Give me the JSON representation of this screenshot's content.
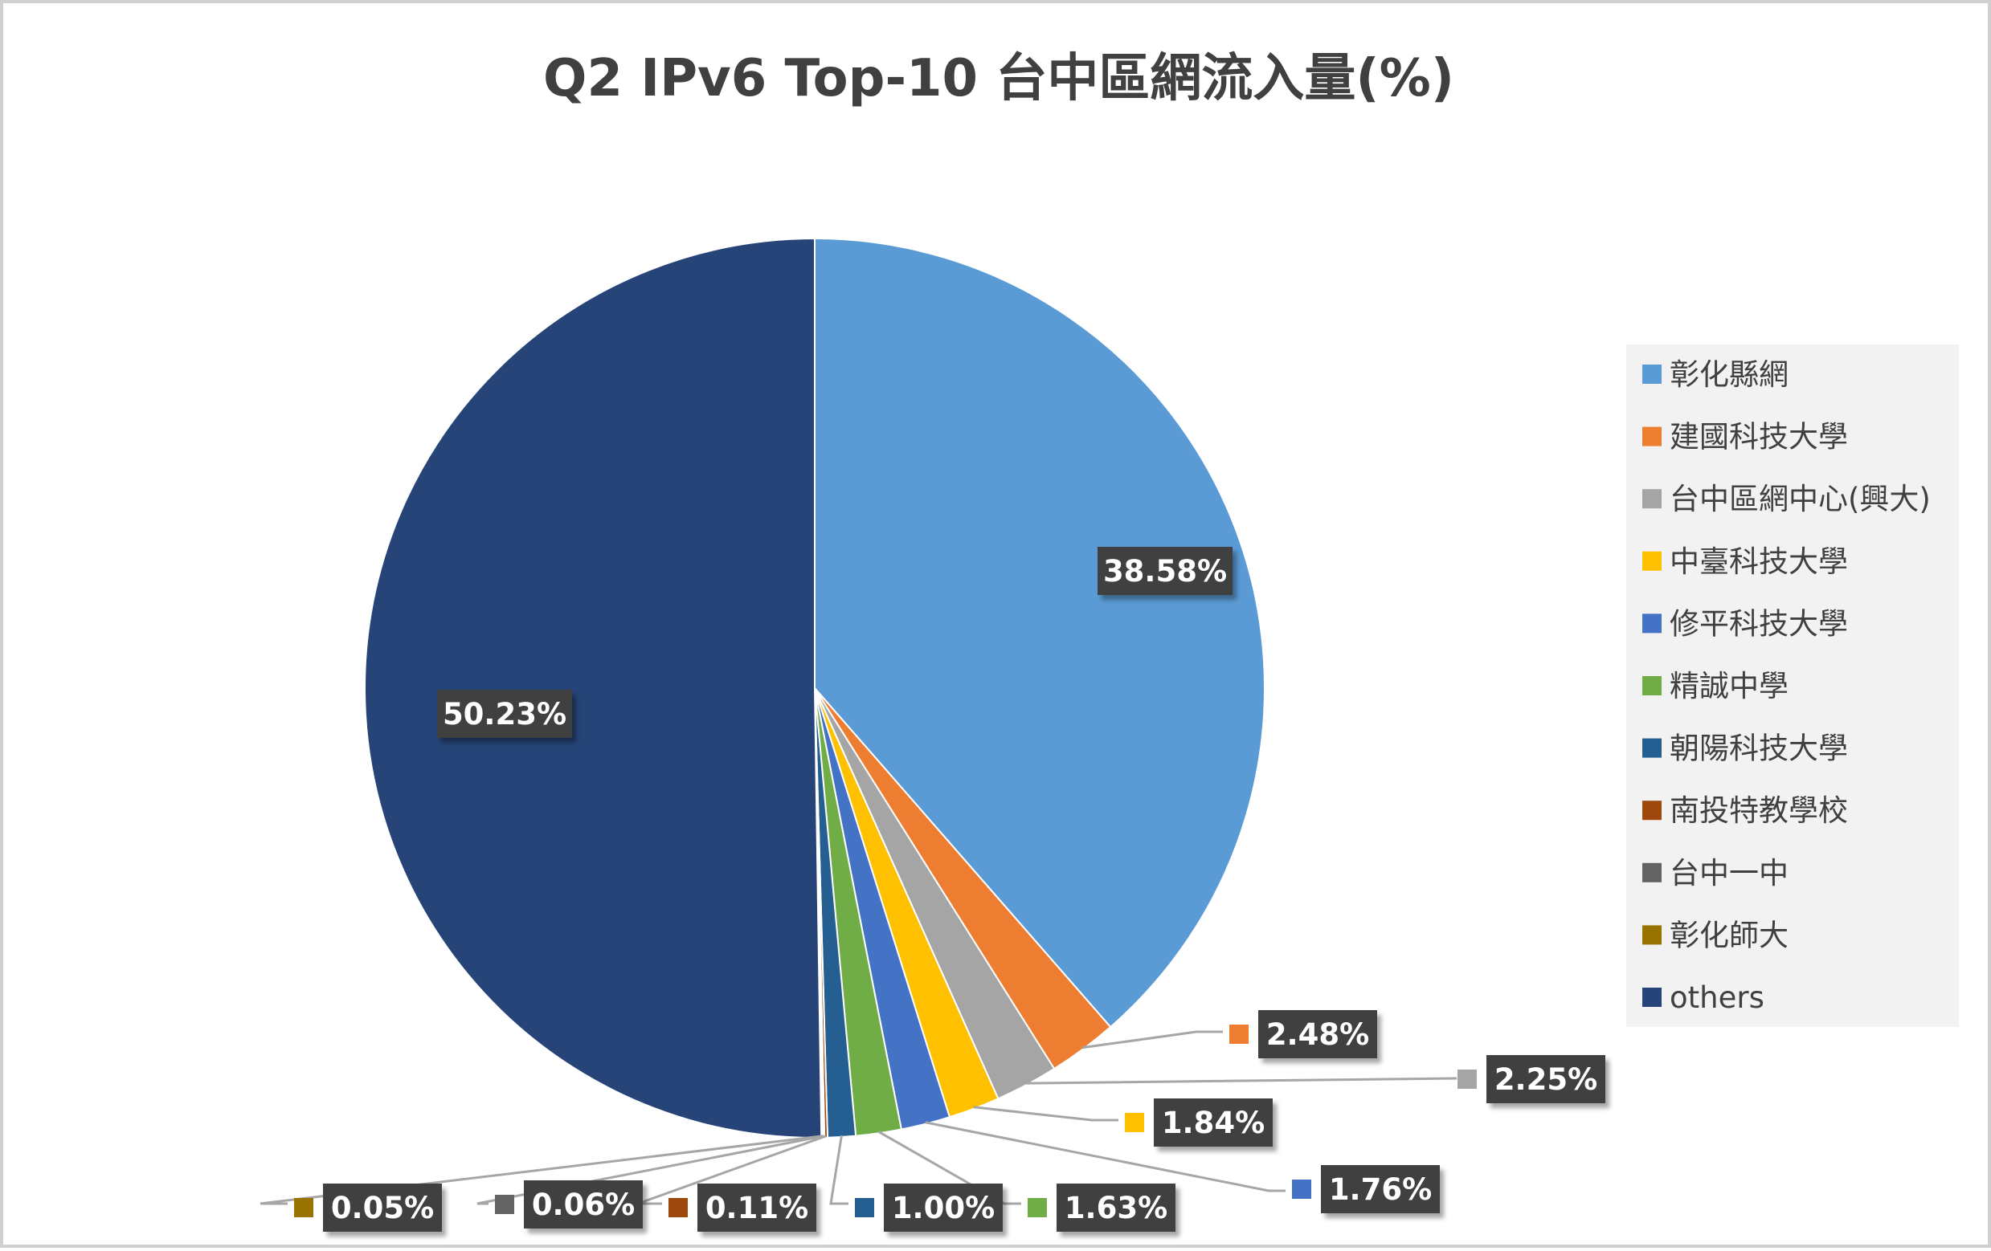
{
  "chart_data": {
    "type": "pie",
    "title": "Q2 IPv6 Top-10 台中區網流入量(%)",
    "legend_position": "right",
    "slices": [
      {
        "name": "彰化縣網",
        "value": 38.58,
        "label": "38.58%",
        "color": "#5b9bd5"
      },
      {
        "name": "建國科技大學",
        "value": 2.48,
        "label": "2.48%",
        "color": "#ed7d31"
      },
      {
        "name": "台中區網中心(興大)",
        "value": 2.25,
        "label": "2.25%",
        "color": "#a5a5a5"
      },
      {
        "name": "中臺科技大學",
        "value": 1.84,
        "label": "1.84%",
        "color": "#ffc000"
      },
      {
        "name": "修平科技大學",
        "value": 1.76,
        "label": "1.76%",
        "color": "#4472c4"
      },
      {
        "name": "精誠中學",
        "value": 1.63,
        "label": "1.63%",
        "color": "#70ad47"
      },
      {
        "name": "朝陽科技大學",
        "value": 1.0,
        "label": "1.00%",
        "color": "#255e91"
      },
      {
        "name": "南投特教學校",
        "value": 0.11,
        "label": "0.11%",
        "color": "#9e480e"
      },
      {
        "name": "台中一中",
        "value": 0.06,
        "label": "0.06%",
        "color": "#636363"
      },
      {
        "name": "彰化師大",
        "value": 0.05,
        "label": "0.05%",
        "color": "#997300"
      },
      {
        "name": "others",
        "value": 50.23,
        "label": "50.23%",
        "color": "#264478"
      }
    ]
  }
}
